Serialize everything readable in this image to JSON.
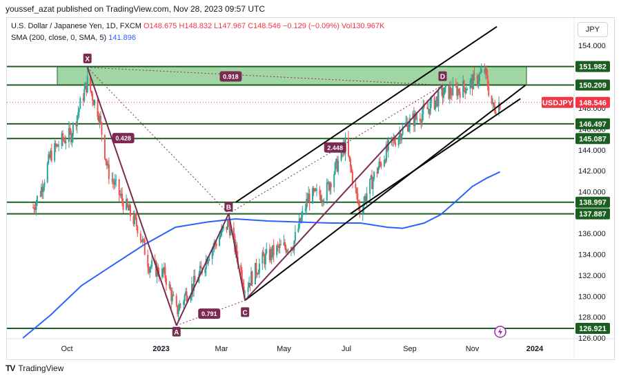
{
  "header": {
    "published": "youssef_azat published on TradingView.com, Nov 28, 2023 09:57 UTC"
  },
  "legend": {
    "line1_prefix": "U.S. Dollar / Japanese Yen, 1D, FXCM",
    "open": "O148.675",
    "high": "H148.832",
    "low": "L147.967",
    "close": "C148.546",
    "change": "−0.129 (−0.09%)",
    "vol": "Vol130.967K",
    "sma_label": "SMA (200, close, 0, SMA, 5)",
    "sma_value": "141.896"
  },
  "currency_button": "JPY",
  "footer": {
    "brand": "TradingView"
  },
  "colors": {
    "up": "#26a69a",
    "down": "#ef5350",
    "sma": "#2962ff",
    "harmonic": "#7b2a52",
    "level": "#1b5e20",
    "zone": "#81c784",
    "price": "#f23645"
  },
  "chart_data": {
    "type": "candlestick",
    "ylim": [
      126,
      156
    ],
    "y_ticks": [
      "126.000",
      "128.000",
      "130.000",
      "132.000",
      "134.000",
      "136.000",
      "138.000",
      "140.000",
      "142.000",
      "144.000",
      "146.000",
      "148.000",
      "150.000",
      "152.000",
      "154.000"
    ],
    "x_ticks": [
      "Oct",
      "2023",
      "Mar",
      "May",
      "Jul",
      "Sep",
      "Nov",
      "2024"
    ],
    "levels": [
      {
        "label": "151.982",
        "value": 151.982
      },
      {
        "label": "150.209",
        "value": 150.209
      },
      {
        "label": "146.497",
        "value": 146.497
      },
      {
        "label": "145.087",
        "value": 145.087
      },
      {
        "label": "138.997",
        "value": 138.997
      },
      {
        "label": "137.887",
        "value": 137.887
      },
      {
        "label": "126.921",
        "value": 126.921
      }
    ],
    "current_price": {
      "symbol": "USDJPY",
      "label": "148.546",
      "value": 148.546
    },
    "harmonic_points": [
      {
        "name": "X",
        "date": "2022-10-21",
        "price": 151.9
      },
      {
        "name": "A",
        "date": "2023-01-16",
        "price": 127.2
      },
      {
        "name": "B",
        "date": "2023-03-08",
        "price": 137.9
      },
      {
        "name": "C",
        "date": "2023-03-24",
        "price": 129.6
      },
      {
        "name": "D",
        "date": "2023-10-03",
        "price": 150.2
      }
    ],
    "ratios": [
      {
        "label": "0.918",
        "date": "2023-03-10",
        "price": 151.0
      },
      {
        "label": "0.428",
        "date": "2022-11-25",
        "price": 145.1
      },
      {
        "label": "0.791",
        "date": "2023-02-17",
        "price": 128.3
      },
      {
        "label": "2.448",
        "date": "2023-06-20",
        "price": 144.2
      }
    ],
    "sma": [
      {
        "date": "2022-08-19",
        "v": 126.0
      },
      {
        "date": "2022-09-15",
        "v": 128.2
      },
      {
        "date": "2022-10-15",
        "v": 131.0
      },
      {
        "date": "2022-11-15",
        "v": 133.0
      },
      {
        "date": "2022-12-15",
        "v": 134.9
      },
      {
        "date": "2023-01-15",
        "v": 136.6
      },
      {
        "date": "2023-02-15",
        "v": 137.1
      },
      {
        "date": "2023-03-15",
        "v": 137.4
      },
      {
        "date": "2023-04-15",
        "v": 137.2
      },
      {
        "date": "2023-05-15",
        "v": 137.1
      },
      {
        "date": "2023-06-15",
        "v": 137.0
      },
      {
        "date": "2023-07-15",
        "v": 137.0
      },
      {
        "date": "2023-08-10",
        "v": 136.6
      },
      {
        "date": "2023-08-25",
        "v": 136.5
      },
      {
        "date": "2023-09-15",
        "v": 137.0
      },
      {
        "date": "2023-10-01",
        "v": 137.8
      },
      {
        "date": "2023-10-15",
        "v": 139.0
      },
      {
        "date": "2023-11-01",
        "v": 140.5
      },
      {
        "date": "2023-11-15",
        "v": 141.3
      },
      {
        "date": "2023-11-28",
        "v": 141.9
      }
    ],
    "price_path": [
      {
        "date": "2022-08-29",
        "v": 138.5
      },
      {
        "date": "2022-09-05",
        "v": 140.0
      },
      {
        "date": "2022-09-15",
        "v": 143.5
      },
      {
        "date": "2022-09-25",
        "v": 144.8
      },
      {
        "date": "2022-10-05",
        "v": 145.5
      },
      {
        "date": "2022-10-21",
        "v": 150.5
      },
      {
        "date": "2022-11-01",
        "v": 147.5
      },
      {
        "date": "2022-11-10",
        "v": 142.0
      },
      {
        "date": "2022-11-25",
        "v": 139.0
      },
      {
        "date": "2022-12-10",
        "v": 136.5
      },
      {
        "date": "2022-12-20",
        "v": 133.0
      },
      {
        "date": "2023-01-05",
        "v": 132.0
      },
      {
        "date": "2023-01-16",
        "v": 128.5
      },
      {
        "date": "2023-01-25",
        "v": 130.2
      },
      {
        "date": "2023-02-05",
        "v": 131.5
      },
      {
        "date": "2023-02-17",
        "v": 134.2
      },
      {
        "date": "2023-03-08",
        "v": 137.0
      },
      {
        "date": "2023-03-24",
        "v": 130.8
      },
      {
        "date": "2023-04-10",
        "v": 133.5
      },
      {
        "date": "2023-04-25",
        "v": 134.5
      },
      {
        "date": "2023-05-10",
        "v": 135.0
      },
      {
        "date": "2023-05-25",
        "v": 139.5
      },
      {
        "date": "2023-06-10",
        "v": 139.8
      },
      {
        "date": "2023-06-30",
        "v": 144.5
      },
      {
        "date": "2023-07-14",
        "v": 138.2
      },
      {
        "date": "2023-07-28",
        "v": 141.5
      },
      {
        "date": "2023-08-10",
        "v": 144.0
      },
      {
        "date": "2023-08-28",
        "v": 146.4
      },
      {
        "date": "2023-09-15",
        "v": 147.6
      },
      {
        "date": "2023-10-03",
        "v": 149.4
      },
      {
        "date": "2023-10-20",
        "v": 149.8
      },
      {
        "date": "2023-11-02",
        "v": 150.5
      },
      {
        "date": "2023-11-13",
        "v": 151.6
      },
      {
        "date": "2023-11-21",
        "v": 148.0
      },
      {
        "date": "2023-11-28",
        "v": 148.5
      }
    ],
    "trend_lines": [
      {
        "from": {
          "date": "2023-03-15",
          "price": 139.0
        },
        "to": {
          "date": "2023-11-25",
          "price": 155.8
        }
      },
      {
        "from": {
          "date": "2023-03-24",
          "price": 129.6
        },
        "to": {
          "date": "2023-12-23",
          "price": 150.2
        }
      },
      {
        "from": {
          "date": "2023-07-05",
          "price": 137.9
        },
        "to": {
          "date": "2023-12-18",
          "price": 148.9
        }
      }
    ]
  }
}
